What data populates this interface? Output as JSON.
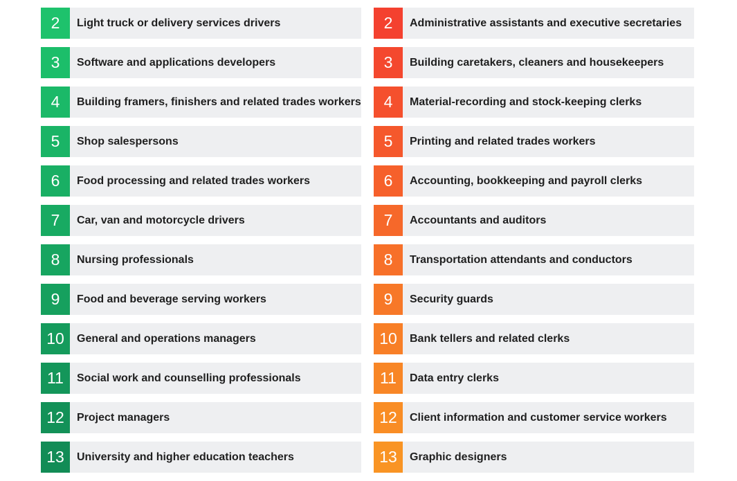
{
  "left_column": {
    "items": [
      {
        "rank": "2",
        "label": "Light truck or delivery services drivers",
        "color": "#1ec26c"
      },
      {
        "rank": "3",
        "label": "Software and applications developers",
        "color": "#1cbe6a"
      },
      {
        "rank": "4",
        "label": "Building framers, finishers and related trades workers",
        "color": "#1bb968"
      },
      {
        "rank": "5",
        "label": "Shop salespersons",
        "color": "#1ab466"
      },
      {
        "rank": "6",
        "label": "Food processing and related trades workers",
        "color": "#19af64"
      },
      {
        "rank": "7",
        "label": "Car, van and motorcycle drivers",
        "color": "#18aa62"
      },
      {
        "rank": "8",
        "label": "Nursing professionals",
        "color": "#17a560"
      },
      {
        "rank": "9",
        "label": "Food and beverage serving workers",
        "color": "#16a05e"
      },
      {
        "rank": "10",
        "label": "General and operations managers",
        "color": "#159b5c"
      },
      {
        "rank": "11",
        "label": "Social work and counselling professionals",
        "color": "#14965a"
      },
      {
        "rank": "12",
        "label": "Project managers",
        "color": "#139158"
      },
      {
        "rank": "13",
        "label": "University and higher education teachers",
        "color": "#128c56"
      }
    ]
  },
  "right_column": {
    "items": [
      {
        "rank": "2",
        "label": "Administrative assistants and executive secretaries",
        "color": "#f4412f"
      },
      {
        "rank": "3",
        "label": "Building caretakers, cleaners and housekeepers",
        "color": "#f4482e"
      },
      {
        "rank": "4",
        "label": "Material-recording and stock-keeping clerks",
        "color": "#f5502d"
      },
      {
        "rank": "5",
        "label": "Printing and related trades workers",
        "color": "#f5582c"
      },
      {
        "rank": "6",
        "label": "Accounting, bookkeeping and payroll clerks",
        "color": "#f6602b"
      },
      {
        "rank": "7",
        "label": "Accountants and auditors",
        "color": "#f6682a"
      },
      {
        "rank": "8",
        "label": "Transportation attendants and conductors",
        "color": "#f77029"
      },
      {
        "rank": "9",
        "label": "Security guards",
        "color": "#f77828"
      },
      {
        "rank": "10",
        "label": "Bank tellers and related clerks",
        "color": "#f87f27"
      },
      {
        "rank": "11",
        "label": "Data entry clerks",
        "color": "#f88626"
      },
      {
        "rank": "12",
        "label": "Client information and customer service workers",
        "color": "#f98d25"
      },
      {
        "rank": "13",
        "label": "Graphic designers",
        "color": "#f99424"
      }
    ]
  }
}
